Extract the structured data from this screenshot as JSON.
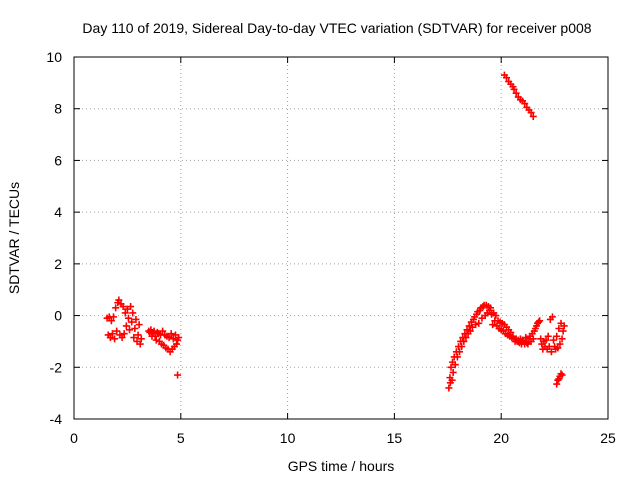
{
  "chart_data": {
    "type": "scatter",
    "title": "Day 110 of 2019, Sidereal Day-to-day VTEC variation (SDTVAR) for receiver p008",
    "xlabel": "GPS time / hours",
    "ylabel": "SDTVAR / TECUs",
    "xlim": [
      0,
      25
    ],
    "ylim": [
      -4,
      10
    ],
    "xticks": [
      0,
      5,
      10,
      15,
      20,
      25
    ],
    "yticks": [
      -4,
      -2,
      0,
      2,
      4,
      6,
      8,
      10
    ],
    "xtick_labels": [
      "0",
      "5",
      "10",
      "15",
      "20",
      "25"
    ],
    "ytick_labels": [
      "-4",
      "-2",
      "0",
      "2",
      "4",
      "6",
      "8",
      "10"
    ],
    "grid": true,
    "marker": "+",
    "color": "#ff0000",
    "series": [
      {
        "name": "SDTVAR",
        "points": [
          [
            1.55,
            -0.1
          ],
          [
            1.6,
            -0.75
          ],
          [
            1.65,
            -0.05
          ],
          [
            1.7,
            -0.85
          ],
          [
            1.75,
            -0.2
          ],
          [
            1.8,
            -0.7
          ],
          [
            1.85,
            -0.05
          ],
          [
            1.9,
            -0.9
          ],
          [
            1.95,
            0.3
          ],
          [
            2.0,
            -0.6
          ],
          [
            2.05,
            0.5
          ],
          [
            2.1,
            0.6
          ],
          [
            2.15,
            -0.75
          ],
          [
            2.2,
            0.45
          ],
          [
            2.25,
            -0.85
          ],
          [
            2.3,
            0.35
          ],
          [
            2.35,
            -0.7
          ],
          [
            2.4,
            0.1
          ],
          [
            2.45,
            -0.4
          ],
          [
            2.5,
            0.25
          ],
          [
            2.55,
            -0.1
          ],
          [
            2.6,
            -0.55
          ],
          [
            2.65,
            0.35
          ],
          [
            2.7,
            -0.25
          ],
          [
            2.75,
            0.1
          ],
          [
            2.8,
            -0.85
          ],
          [
            2.85,
            -0.5
          ],
          [
            2.9,
            -0.15
          ],
          [
            2.95,
            -1.0
          ],
          [
            3.0,
            -0.75
          ],
          [
            3.05,
            -0.35
          ],
          [
            3.1,
            -1.1
          ],
          [
            3.15,
            -0.9
          ],
          [
            3.5,
            -0.6
          ],
          [
            3.55,
            -0.65
          ],
          [
            3.6,
            -0.55
          ],
          [
            3.65,
            -0.8
          ],
          [
            3.7,
            -0.7
          ],
          [
            3.75,
            -0.6
          ],
          [
            3.8,
            -0.8
          ],
          [
            3.85,
            -0.95
          ],
          [
            3.9,
            -0.65
          ],
          [
            3.95,
            -0.7
          ],
          [
            4.0,
            -1.0
          ],
          [
            4.05,
            -0.75
          ],
          [
            4.1,
            -1.1
          ],
          [
            4.15,
            -0.6
          ],
          [
            4.2,
            -1.15
          ],
          [
            4.25,
            -0.75
          ],
          [
            4.3,
            -1.25
          ],
          [
            4.35,
            -0.8
          ],
          [
            4.4,
            -1.3
          ],
          [
            4.45,
            -0.85
          ],
          [
            4.5,
            -1.4
          ],
          [
            4.55,
            -0.7
          ],
          [
            4.6,
            -1.3
          ],
          [
            4.65,
            -0.9
          ],
          [
            4.7,
            -1.2
          ],
          [
            4.75,
            -0.75
          ],
          [
            4.8,
            -1.1
          ],
          [
            4.85,
            -0.95
          ],
          [
            4.9,
            -0.85
          ],
          [
            4.85,
            -2.3
          ],
          [
            17.55,
            -2.8
          ],
          [
            17.6,
            -2.4
          ],
          [
            17.62,
            -2.6
          ],
          [
            17.65,
            -2.0
          ],
          [
            17.7,
            -2.5
          ],
          [
            17.72,
            -1.8
          ],
          [
            17.75,
            -2.2
          ],
          [
            17.8,
            -1.6
          ],
          [
            17.85,
            -1.9
          ],
          [
            17.9,
            -1.4
          ],
          [
            17.95,
            -1.6
          ],
          [
            18.0,
            -1.2
          ],
          [
            18.05,
            -1.4
          ],
          [
            18.1,
            -1.0
          ],
          [
            18.15,
            -1.2
          ],
          [
            18.2,
            -0.85
          ],
          [
            18.25,
            -1.0
          ],
          [
            18.3,
            -0.7
          ],
          [
            18.35,
            -0.85
          ],
          [
            18.4,
            -0.55
          ],
          [
            18.45,
            -0.7
          ],
          [
            18.5,
            -0.4
          ],
          [
            18.55,
            -0.6
          ],
          [
            18.6,
            -0.25
          ],
          [
            18.65,
            -0.45
          ],
          [
            18.7,
            -0.15
          ],
          [
            18.75,
            -0.05
          ],
          [
            18.8,
            -0.35
          ],
          [
            18.85,
            0.05
          ],
          [
            18.9,
            0.15
          ],
          [
            18.95,
            -0.3
          ],
          [
            19.0,
            0.2
          ],
          [
            19.05,
            0.3
          ],
          [
            19.1,
            -0.1
          ],
          [
            19.15,
            0.35
          ],
          [
            19.2,
            0.4
          ],
          [
            19.25,
            0.0
          ],
          [
            19.3,
            0.4
          ],
          [
            19.35,
            0.1
          ],
          [
            19.4,
            0.35
          ],
          [
            19.45,
            0.2
          ],
          [
            19.5,
            0.3
          ],
          [
            19.55,
            0.05
          ],
          [
            19.6,
            -0.35
          ],
          [
            19.65,
            0.1
          ],
          [
            19.7,
            -0.2
          ],
          [
            19.75,
            0.0
          ],
          [
            19.8,
            -0.4
          ],
          [
            19.85,
            -0.2
          ],
          [
            19.9,
            -0.5
          ],
          [
            19.95,
            -0.25
          ],
          [
            20.0,
            -0.55
          ],
          [
            20.05,
            -0.3
          ],
          [
            20.1,
            -0.6
          ],
          [
            20.15,
            -0.35
          ],
          [
            20.2,
            -0.7
          ],
          [
            20.25,
            -0.45
          ],
          [
            20.3,
            -0.75
          ],
          [
            20.35,
            -0.55
          ],
          [
            20.4,
            -0.8
          ],
          [
            20.45,
            -0.65
          ],
          [
            20.5,
            -0.85
          ],
          [
            20.55,
            -0.8
          ],
          [
            20.6,
            -0.9
          ],
          [
            20.65,
            -1.0
          ],
          [
            20.7,
            -0.9
          ],
          [
            20.75,
            -1.0
          ],
          [
            20.8,
            -0.95
          ],
          [
            20.85,
            -1.05
          ],
          [
            20.9,
            -0.9
          ],
          [
            20.95,
            -1.1
          ],
          [
            21.0,
            -0.95
          ],
          [
            21.05,
            -1.0
          ],
          [
            21.1,
            -1.1
          ],
          [
            21.15,
            -0.85
          ],
          [
            21.2,
            -1.05
          ],
          [
            21.25,
            -1.1
          ],
          [
            21.3,
            -0.9
          ],
          [
            21.35,
            -0.8
          ],
          [
            21.4,
            -1.0
          ],
          [
            21.45,
            -0.7
          ],
          [
            21.5,
            -0.9
          ],
          [
            21.55,
            -0.6
          ],
          [
            21.6,
            -0.5
          ],
          [
            21.65,
            -0.4
          ],
          [
            21.7,
            -0.3
          ],
          [
            21.75,
            -0.25
          ],
          [
            21.8,
            -0.2
          ],
          [
            21.85,
            -0.9
          ],
          [
            21.9,
            -1.1
          ],
          [
            21.95,
            -1.3
          ],
          [
            22.0,
            -1.0
          ],
          [
            22.05,
            -1.2
          ],
          [
            22.1,
            -0.95
          ],
          [
            22.15,
            -1.3
          ],
          [
            22.2,
            -0.8
          ],
          [
            22.25,
            -1.2
          ],
          [
            22.3,
            -0.15
          ],
          [
            22.35,
            -1.4
          ],
          [
            22.4,
            -0.05
          ],
          [
            22.45,
            -0.95
          ],
          [
            22.5,
            -1.2
          ],
          [
            22.55,
            -1.3
          ],
          [
            22.6,
            -0.8
          ],
          [
            22.65,
            -1.25
          ],
          [
            22.7,
            -0.5
          ],
          [
            22.75,
            -1.1
          ],
          [
            22.8,
            -0.3
          ],
          [
            22.85,
            -0.9
          ],
          [
            22.9,
            -0.6
          ],
          [
            22.95,
            -0.4
          ],
          [
            22.6,
            -2.65
          ],
          [
            22.65,
            -2.5
          ],
          [
            22.7,
            -2.45
          ],
          [
            22.75,
            -2.35
          ],
          [
            22.8,
            -2.25
          ],
          [
            22.85,
            -2.3
          ],
          [
            20.15,
            9.3
          ],
          [
            20.25,
            9.2
          ],
          [
            20.35,
            9.05
          ],
          [
            20.45,
            8.95
          ],
          [
            20.55,
            8.85
          ],
          [
            20.6,
            8.75
          ],
          [
            20.7,
            8.6
          ],
          [
            20.8,
            8.45
          ],
          [
            20.9,
            8.35
          ],
          [
            21.0,
            8.3
          ],
          [
            21.1,
            8.2
          ],
          [
            21.2,
            8.05
          ],
          [
            21.3,
            7.95
          ],
          [
            21.4,
            7.85
          ],
          [
            21.5,
            7.7
          ]
        ]
      }
    ]
  }
}
